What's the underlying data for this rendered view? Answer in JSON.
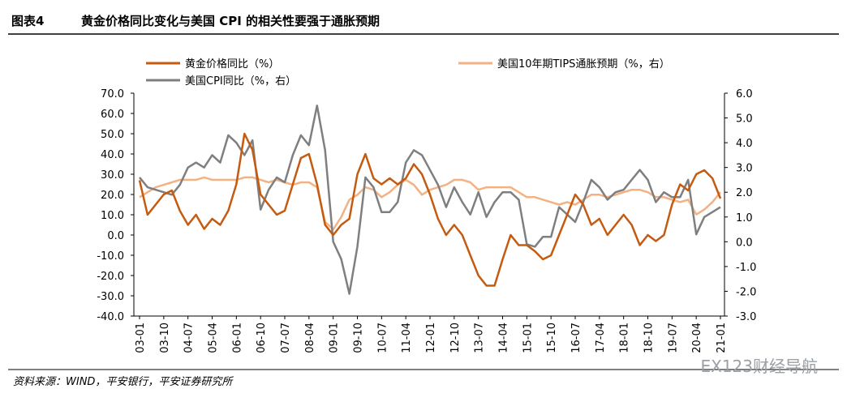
{
  "header": {
    "label": "图表4",
    "title": "黄金价格同比变化与美国 CPI 的相关性要强于通胀预期"
  },
  "chart_data": {
    "type": "line",
    "categories": [
      "03-01",
      null,
      null,
      "03-10",
      null,
      null,
      "04-07",
      null,
      null,
      "05-04",
      null,
      null,
      "06-01",
      null,
      null,
      "06-10",
      null,
      null,
      "07-07",
      null,
      null,
      "08-04",
      null,
      null,
      "09-01",
      null,
      null,
      "09-10",
      null,
      null,
      "10-07",
      null,
      null,
      "11-04",
      null,
      null,
      "12-01",
      null,
      null,
      "12-10",
      null,
      null,
      "13-07",
      null,
      null,
      "14-04",
      null,
      null,
      "15-01",
      null,
      null,
      "15-10",
      null,
      null,
      "16-07",
      null,
      null,
      "17-04",
      null,
      null,
      "18-01",
      null,
      null,
      "18-10",
      null,
      null,
      "19-07",
      null,
      null,
      "20-04",
      null,
      null,
      "21-01"
    ],
    "series": [
      {
        "name": "黄金价格同比（%）",
        "color": "#C55A11",
        "values": [
          27,
          10,
          15,
          20,
          22,
          12,
          5,
          10,
          3,
          8,
          5,
          12,
          25,
          50,
          42,
          20,
          15,
          10,
          12,
          25,
          38,
          40,
          25,
          5,
          0,
          5,
          8,
          30,
          40,
          28,
          25,
          28,
          25,
          28,
          35,
          30,
          20,
          8,
          0,
          5,
          0,
          -10,
          -20,
          -25,
          -25,
          -12,
          0,
          -5,
          -5,
          -8,
          -12,
          -10,
          0,
          10,
          20,
          15,
          5,
          8,
          0,
          5,
          10,
          5,
          -5,
          0,
          -3,
          0,
          15,
          25,
          22,
          30,
          32,
          28,
          18
        ]
      },
      {
        "name": "美国10年期TIPS通胀预期（%，右）",
        "color": "#F4B183",
        "axis": "y2",
        "values": [
          1.8,
          2.0,
          2.2,
          2.3,
          2.4,
          2.5,
          2.5,
          2.5,
          2.6,
          2.5,
          2.5,
          2.5,
          2.5,
          2.6,
          2.6,
          2.5,
          2.4,
          2.5,
          2.4,
          2.3,
          2.4,
          2.4,
          2.2,
          0.8,
          0.5,
          1.0,
          1.7,
          1.9,
          2.2,
          2.1,
          1.8,
          2.0,
          2.3,
          2.5,
          2.3,
          1.9,
          2.1,
          2.2,
          2.3,
          2.5,
          2.5,
          2.4,
          2.1,
          2.2,
          2.2,
          2.2,
          2.2,
          2.0,
          1.8,
          1.8,
          1.7,
          1.6,
          1.5,
          1.6,
          1.5,
          1.7,
          1.9,
          1.9,
          1.8,
          1.9,
          2.0,
          2.1,
          2.1,
          2.0,
          1.8,
          1.8,
          1.7,
          1.6,
          1.7,
          1.1,
          1.3,
          1.6,
          2.0
        ]
      },
      {
        "name": "美国CPI同比（%，右）",
        "color": "#7F7F7F",
        "axis": "y2",
        "values": [
          2.6,
          2.2,
          2.1,
          2.0,
          1.9,
          2.3,
          3.0,
          3.2,
          3.0,
          3.5,
          3.2,
          4.3,
          4.0,
          3.5,
          4.1,
          1.3,
          2.1,
          2.6,
          2.4,
          3.5,
          4.3,
          3.9,
          5.5,
          3.7,
          0.0,
          -0.7,
          -2.1,
          -0.2,
          2.6,
          2.2,
          1.2,
          1.2,
          1.6,
          3.2,
          3.7,
          3.5,
          2.9,
          2.3,
          1.4,
          2.2,
          1.6,
          1.1,
          2.0,
          1.0,
          1.6,
          2.0,
          2.0,
          1.7,
          -0.1,
          -0.2,
          0.2,
          0.2,
          1.4,
          1.1,
          0.8,
          1.6,
          2.5,
          2.2,
          1.7,
          2.0,
          2.1,
          2.5,
          2.9,
          2.5,
          1.6,
          2.0,
          1.8,
          1.8,
          2.5,
          0.3,
          1.0,
          1.2,
          1.4
        ]
      }
    ],
    "ylim": [
      -40,
      70
    ],
    "yticks": [
      {
        "value": 70,
        "label": "70.0"
      },
      {
        "value": 60,
        "label": "60.0"
      },
      {
        "value": 50,
        "label": "50.0"
      },
      {
        "value": 40,
        "label": "40.0"
      },
      {
        "value": 30,
        "label": "30.0"
      },
      {
        "value": 20,
        "label": "20.0"
      },
      {
        "value": 10,
        "label": "10.0"
      },
      {
        "value": 0,
        "label": "0.0"
      },
      {
        "value": -10,
        "label": "-10.0"
      },
      {
        "value": -20,
        "label": "-20.0"
      },
      {
        "value": -30,
        "label": "-30.0"
      },
      {
        "value": -40,
        "label": "-40.0"
      }
    ],
    "y2lim": [
      -3,
      6
    ],
    "y2ticks": [
      {
        "value": 6,
        "label": "6.0"
      },
      {
        "value": 5,
        "label": "5.0"
      },
      {
        "value": 4,
        "label": "4.0"
      },
      {
        "value": 3,
        "label": "3.0"
      },
      {
        "value": 2,
        "label": "2.0"
      },
      {
        "value": 1,
        "label": "1.0"
      },
      {
        "value": 0,
        "label": "0.0"
      },
      {
        "value": -1,
        "label": "-1.0"
      },
      {
        "value": -2,
        "label": "-2.0"
      },
      {
        "value": -3,
        "label": "-3.0"
      }
    ],
    "grid": false
  },
  "footer": {
    "source": "资料来源：WIND，平安银行，平安证券研究所",
    "watermark": "EX123财经导航"
  }
}
